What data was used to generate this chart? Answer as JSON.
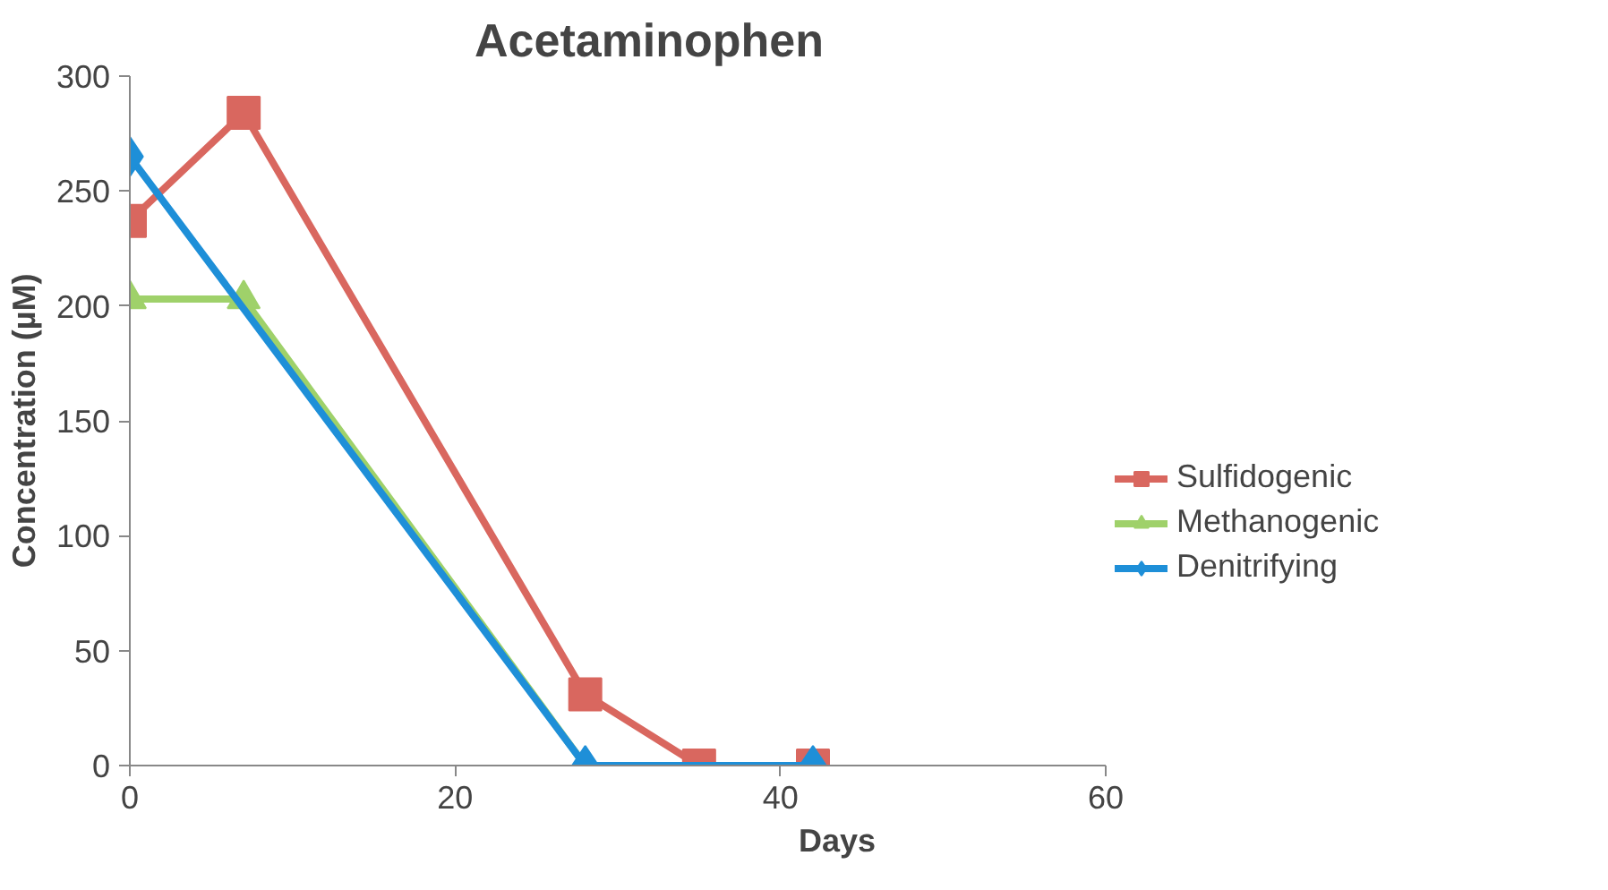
{
  "chart_data": {
    "type": "line",
    "title": "Acetaminophen",
    "xlabel": "Days",
    "ylabel": "Concentration (µM)",
    "xlim": [
      0,
      60
    ],
    "xticks": [
      0,
      20,
      40,
      60
    ],
    "ylim": [
      0,
      300
    ],
    "yticks": [
      0,
      50,
      100,
      150,
      200,
      250,
      300
    ],
    "grid": false,
    "legend": "right",
    "series": [
      {
        "name": "Sulfidogenic",
        "color": "#d9675f",
        "marker": "square",
        "x": [
          0,
          7,
          28,
          35,
          42
        ],
        "values": [
          237,
          284,
          31,
          0,
          0
        ]
      },
      {
        "name": "Methanogenic",
        "color": "#9fd16a",
        "marker": "triangle",
        "x": [
          0,
          7,
          28,
          42
        ],
        "values": [
          203,
          203,
          0,
          0
        ]
      },
      {
        "name": "Denitrifying",
        "color": "#1e8fd8",
        "marker": "diamond",
        "x": [
          0,
          28,
          42
        ],
        "values": [
          265,
          0,
          0
        ]
      }
    ]
  }
}
